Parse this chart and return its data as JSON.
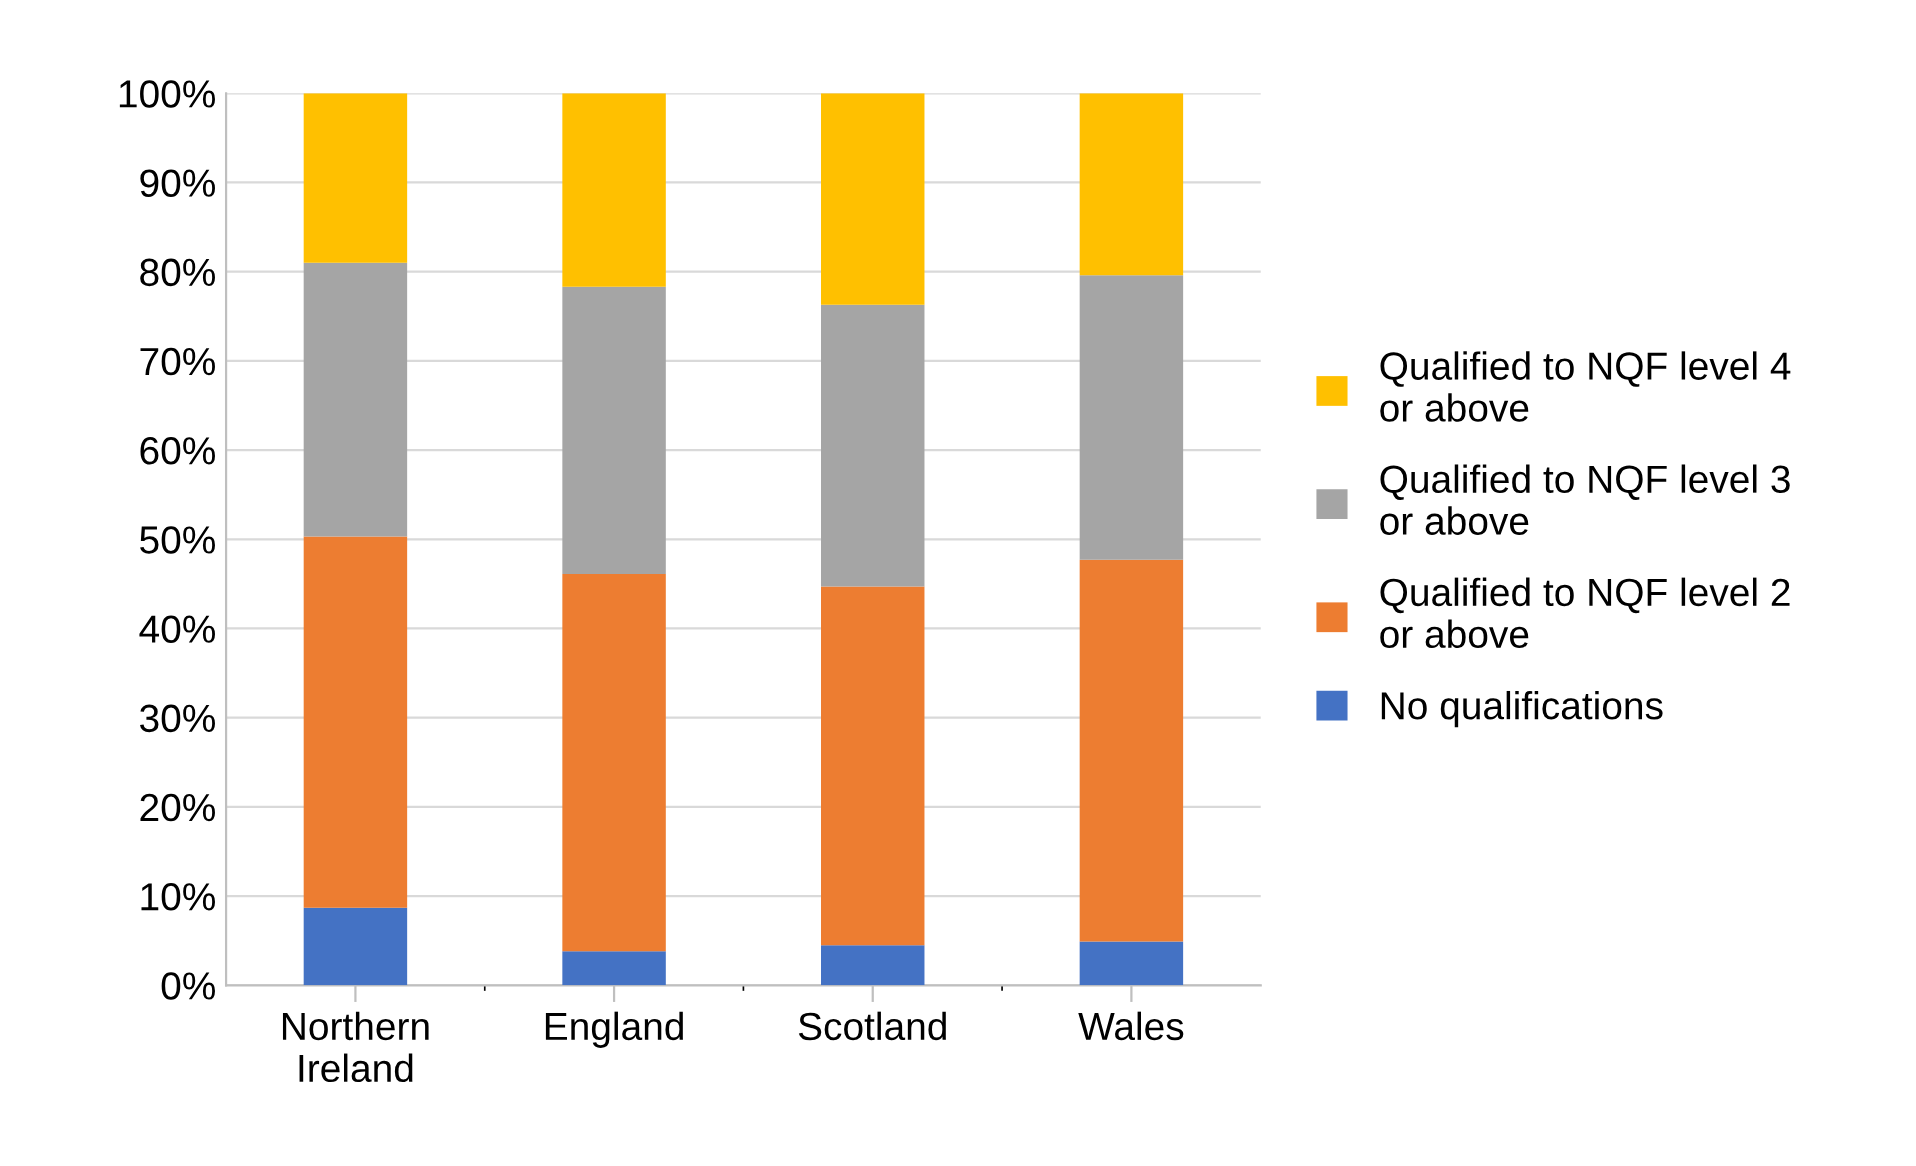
{
  "chart_data": {
    "type": "bar",
    "stacked": true,
    "categories": [
      "Northern\nIreland",
      "England",
      "Scotland",
      "Wales"
    ],
    "series": [
      {
        "name": "No qualifications",
        "color": "#4472c4",
        "values": [
          8.7,
          3.8,
          4.5,
          4.9
        ]
      },
      {
        "name": "Qualified to NQF level 2\nor above",
        "color": "#ed7d31",
        "values": [
          41.6,
          42.3,
          40.2,
          42.8
        ]
      },
      {
        "name": "Qualified to NQF level 3\nor above",
        "color": "#a5a5a5",
        "values": [
          30.7,
          32.2,
          31.6,
          31.9
        ]
      },
      {
        "name": "Qualified to NQF level 4\nor above",
        "color": "#ffc000",
        "values": [
          19.0,
          21.7,
          23.7,
          20.4
        ]
      }
    ],
    "ylim": [
      0,
      100
    ],
    "yticks": [
      {
        "value": 0,
        "label": "0%"
      },
      {
        "value": 10,
        "label": "10%"
      },
      {
        "value": 20,
        "label": "20%"
      },
      {
        "value": 30,
        "label": "30%"
      },
      {
        "value": 40,
        "label": "40%"
      },
      {
        "value": 50,
        "label": "50%"
      },
      {
        "value": 60,
        "label": "60%"
      },
      {
        "value": 70,
        "label": "70%"
      },
      {
        "value": 80,
        "label": "80%"
      },
      {
        "value": 90,
        "label": "90%"
      },
      {
        "value": 100,
        "label": "100%"
      }
    ],
    "grid": "y",
    "legend": "right"
  }
}
